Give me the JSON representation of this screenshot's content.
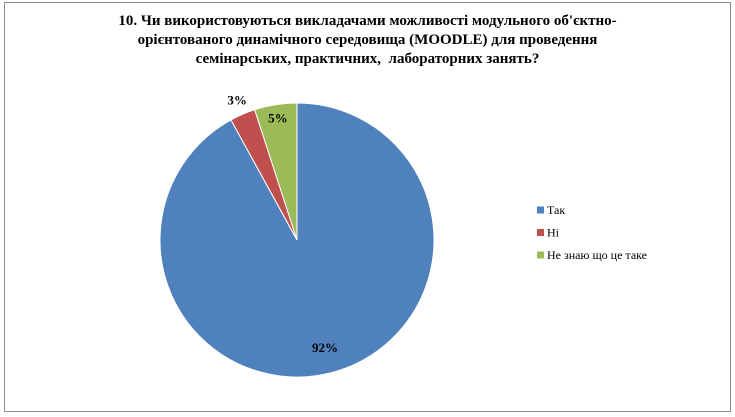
{
  "chart_data": {
    "type": "pie",
    "title": "10. Чи використовуються викладачами можливості модульного об'єктно-орієнтованого динамічного середовища (MOODLE) для проведення семінарських, практичних,  лабораторних занять?",
    "categories": [
      "Так",
      "Ні",
      "Не знаю що це таке"
    ],
    "values": [
      92,
      3,
      5
    ],
    "value_labels": [
      "92%",
      "3%",
      "5%"
    ],
    "colors": [
      "#4f81bd",
      "#c0504d",
      "#9bbb59"
    ],
    "legend": "right"
  }
}
